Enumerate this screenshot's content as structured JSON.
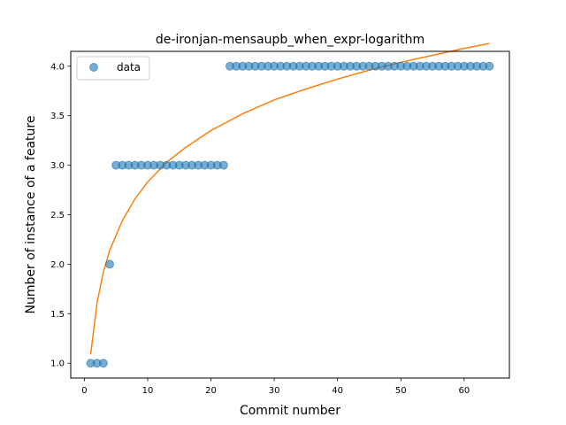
{
  "chart_data": {
    "type": "scatter",
    "title": "de-ironjan-mensaupb_when_expr-logarithm",
    "xlabel": "Commit number",
    "ylabel": "Number of instance of a feature",
    "xlim": [
      -2.15,
      67.15
    ],
    "ylim": [
      0.85,
      4.15
    ],
    "xticks": [
      0,
      10,
      20,
      30,
      40,
      50,
      60
    ],
    "xtick_labels": [
      "0",
      "10",
      "20",
      "30",
      "40",
      "50",
      "60"
    ],
    "yticks": [
      1.0,
      1.5,
      2.0,
      2.5,
      3.0,
      3.5,
      4.0
    ],
    "ytick_labels": [
      "1.0",
      "1.5",
      "2.0",
      "2.5",
      "3.0",
      "3.5",
      "4.0"
    ],
    "grid": false,
    "legend": {
      "placement": "top-left",
      "entries": [
        "data"
      ]
    },
    "series": [
      {
        "name": "data",
        "kind": "scatter",
        "color": "#1f77b4",
        "x": [
          1,
          2,
          3,
          4,
          5,
          6,
          7,
          8,
          9,
          10,
          11,
          12,
          13,
          14,
          15,
          16,
          17,
          18,
          19,
          20,
          21,
          22,
          23,
          24,
          25,
          26,
          27,
          28,
          29,
          30,
          31,
          32,
          33,
          34,
          35,
          36,
          37,
          38,
          39,
          40,
          41,
          42,
          43,
          44,
          45,
          46,
          47,
          48,
          49,
          50,
          51,
          52,
          53,
          54,
          55,
          56,
          57,
          58,
          59,
          60,
          61,
          62,
          63,
          64
        ],
        "y": [
          1,
          1,
          1,
          2,
          3,
          3,
          3,
          3,
          3,
          3,
          3,
          3,
          3,
          3,
          3,
          3,
          3,
          3,
          3,
          3,
          3,
          3,
          4,
          4,
          4,
          4,
          4,
          4,
          4,
          4,
          4,
          4,
          4,
          4,
          4,
          4,
          4,
          4,
          4,
          4,
          4,
          4,
          4,
          4,
          4,
          4,
          4,
          4,
          4,
          4,
          4,
          4,
          4,
          4,
          4,
          4,
          4,
          4,
          4,
          4,
          4,
          4,
          4,
          4
        ]
      },
      {
        "kind": "line",
        "color": "#ff7f0e",
        "x": [
          1,
          2,
          3,
          4,
          6,
          8,
          10,
          13,
          16,
          20,
          25,
          30,
          35,
          40,
          45,
          50,
          55,
          60,
          64
        ],
        "y": [
          1.09,
          1.61,
          1.92,
          2.14,
          2.44,
          2.66,
          2.83,
          3.03,
          3.18,
          3.35,
          3.52,
          3.66,
          3.77,
          3.87,
          3.96,
          4.04,
          4.11,
          4.18,
          4.23
        ]
      }
    ]
  }
}
